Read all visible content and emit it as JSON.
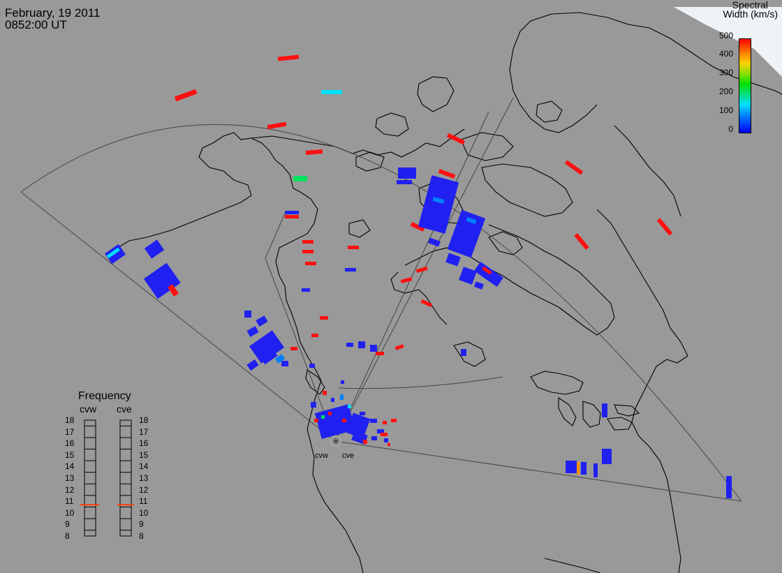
{
  "header": {
    "date": "February, 19 2011",
    "time": "0852:00 UT"
  },
  "colorbar": {
    "title_line1": "Spectral",
    "title_line2": "Width (km/s)",
    "ticks": [
      "500",
      "400",
      "300",
      "200",
      "100",
      "0"
    ],
    "colors": [
      "#ff0000",
      "#ff8000",
      "#ffd000",
      "#00e000",
      "#00e0ff",
      "#0000ff"
    ]
  },
  "frequency": {
    "title": "Frequency",
    "radars": [
      "cvw",
      "cve"
    ],
    "levels": [
      "18",
      "17",
      "16",
      "15",
      "14",
      "13",
      "12",
      "11",
      "10",
      "9",
      "8"
    ],
    "cvw_value_mhz": 10.7,
    "cve_value_mhz": 10.7,
    "marker_color": "#ff4000"
  },
  "radars": {
    "west_label": "cvw",
    "east_label": "cve"
  },
  "colors": {
    "background": "#999999",
    "coastline": "#000000",
    "blue": "#2020f0",
    "cyan": "#00e0ff",
    "green": "#00e060",
    "red": "#ff1010",
    "orange": "#ff9000",
    "daylight": "#e8f0f8"
  }
}
